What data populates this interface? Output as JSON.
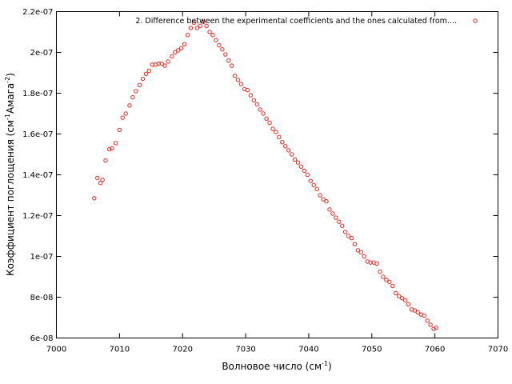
{
  "chart_data": {
    "type": "scatter",
    "title": "",
    "xlabel": {
      "main": "Волновое число (см",
      "sup": "-1",
      "tail": ")"
    },
    "ylabel": {
      "main": "Коэффициент поглощения (см",
      "sup1": "-1",
      "mid": "Амага",
      "sup2": "-2",
      "tail": ")"
    },
    "xlim": [
      7000,
      7070
    ],
    "ylim": [
      6e-08,
      2.2e-07
    ],
    "x_ticks": [
      7000,
      7010,
      7020,
      7030,
      7040,
      7050,
      7060,
      7070
    ],
    "x_tick_labels": [
      "7000",
      "7010",
      "7020",
      "7030",
      "7040",
      "7050",
      "7060",
      "7070"
    ],
    "y_ticks": [
      6e-08,
      8e-08,
      1e-07,
      1.2e-07,
      1.4e-07,
      1.6e-07,
      1.8e-07,
      2e-07,
      2.2e-07
    ],
    "y_tick_labels": [
      "6e-08",
      "8e-08",
      "1e-07",
      "1.2e-07",
      "1.4e-07",
      "1.6e-07",
      "1.8e-07",
      "2e-07",
      "2.2e-07"
    ],
    "grid": false,
    "legend_position": "top-right",
    "marker_color": "#e8221a",
    "series": [
      {
        "name": "2. Difference between the experimental coefficients and the ones calculated from....",
        "x": [
          7006.0,
          7006.5,
          7007.0,
          7007.3,
          7007.8,
          7008.4,
          7008.8,
          7009.4,
          7010.0,
          7010.5,
          7011.0,
          7011.6,
          7012.1,
          7012.6,
          7013.2,
          7013.7,
          7014.2,
          7014.7,
          7015.2,
          7015.7,
          7016.2,
          7016.7,
          7017.2,
          7017.7,
          7018.3,
          7018.8,
          7019.3,
          7019.8,
          7020.3,
          7020.8,
          7021.3,
          7021.8,
          7022.3,
          7022.8,
          7023.3,
          7023.8,
          7024.3,
          7024.8,
          7025.3,
          7025.8,
          7026.3,
          7026.8,
          7027.3,
          7027.8,
          7028.3,
          7028.8,
          7029.3,
          7029.8,
          7030.3,
          7030.8,
          7031.3,
          7031.8,
          7032.3,
          7032.8,
          7033.3,
          7033.8,
          7034.3,
          7034.8,
          7035.3,
          7035.8,
          7036.3,
          7036.8,
          7037.3,
          7037.8,
          7038.3,
          7038.8,
          7039.3,
          7039.8,
          7040.3,
          7040.8,
          7041.3,
          7041.8,
          7042.3,
          7042.8,
          7043.3,
          7043.8,
          7044.3,
          7044.8,
          7045.3,
          7045.8,
          7046.3,
          7046.8,
          7047.3,
          7047.8,
          7048.3,
          7048.8,
          7049.3,
          7049.8,
          7050.3,
          7050.8,
          7051.3,
          7051.8,
          7052.3,
          7052.8,
          7053.3,
          7053.8,
          7054.3,
          7054.8,
          7055.3,
          7055.8,
          7056.3,
          7056.8,
          7057.3,
          7057.8,
          7058.3,
          7058.8,
          7059.3,
          7059.8,
          7060.2
        ],
        "y": [
          1.285e-07,
          1.385e-07,
          1.36e-07,
          1.375e-07,
          1.47e-07,
          1.525e-07,
          1.53e-07,
          1.555e-07,
          1.62e-07,
          1.68e-07,
          1.7e-07,
          1.74e-07,
          1.78e-07,
          1.81e-07,
          1.84e-07,
          1.87e-07,
          1.895e-07,
          1.91e-07,
          1.94e-07,
          1.94e-07,
          1.945e-07,
          1.945e-07,
          1.935e-07,
          1.955e-07,
          1.98e-07,
          2e-07,
          2.01e-07,
          2.02e-07,
          2.04e-07,
          2.085e-07,
          2.12e-07,
          2.145e-07,
          2.12e-07,
          2.13e-07,
          2.15e-07,
          2.13e-07,
          2.1e-07,
          2.085e-07,
          2.06e-07,
          2.035e-07,
          2.015e-07,
          1.99e-07,
          1.96e-07,
          1.935e-07,
          1.885e-07,
          1.865e-07,
          1.845e-07,
          1.82e-07,
          1.815e-07,
          1.79e-07,
          1.765e-07,
          1.745e-07,
          1.72e-07,
          1.7e-07,
          1.675e-07,
          1.655e-07,
          1.625e-07,
          1.61e-07,
          1.585e-07,
          1.56e-07,
          1.54e-07,
          1.52e-07,
          1.5e-07,
          1.475e-07,
          1.46e-07,
          1.44e-07,
          1.42e-07,
          1.4e-07,
          1.37e-07,
          1.35e-07,
          1.33e-07,
          1.3e-07,
          1.28e-07,
          1.27e-07,
          1.23e-07,
          1.21e-07,
          1.19e-07,
          1.17e-07,
          1.15e-07,
          1.12e-07,
          1.1e-07,
          1.09e-07,
          1.06e-07,
          1.03e-07,
          1.02e-07,
          1e-07,
          9.75e-08,
          9.7e-08,
          9.7e-08,
          9.65e-08,
          9.25e-08,
          9e-08,
          8.85e-08,
          8.75e-08,
          8.55e-08,
          8.2e-08,
          8.05e-08,
          7.95e-08,
          7.85e-08,
          7.65e-08,
          7.4e-08,
          7.35e-08,
          7.25e-08,
          7.15e-08,
          7.1e-08,
          6.85e-08,
          6.65e-08,
          6.45e-08,
          6.5e-08
        ]
      }
    ]
  }
}
